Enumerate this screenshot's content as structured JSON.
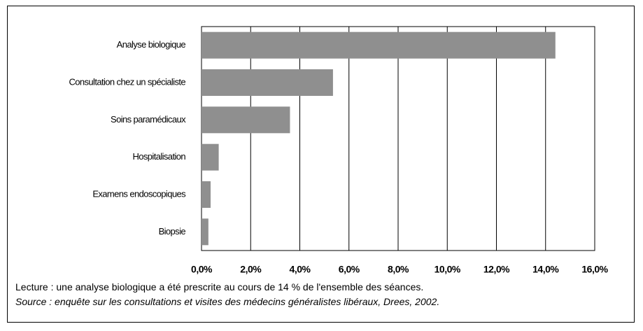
{
  "chart_data": {
    "type": "barh",
    "categories": [
      "Analyse biologique",
      "Consultation chez un spécialiste",
      "Soins paramédicaux",
      "Hospitalisation",
      "Examens endoscopiques",
      "Biopsie"
    ],
    "values": [
      14.4,
      5.35,
      3.6,
      0.7,
      0.37,
      0.28
    ],
    "color": "#8f8f8f",
    "xlim": [
      0,
      16
    ],
    "xticks": [
      {
        "value": 0,
        "label": "0,0%"
      },
      {
        "value": 2,
        "label": "2,0%"
      },
      {
        "value": 4,
        "label": "4,0%"
      },
      {
        "value": 6,
        "label": "6,0%"
      },
      {
        "value": 8,
        "label": "8,0%"
      },
      {
        "value": 10,
        "label": "10,0%"
      },
      {
        "value": 12,
        "label": "12,0%"
      },
      {
        "value": 14,
        "label": "14,0%"
      },
      {
        "value": 16,
        "label": "16,0%"
      }
    ],
    "grid": true,
    "notes": [
      "Lecture : une analyse biologique a été prescrite au cours de 14 % de l'ensemble des séances.",
      "Source : enquête sur les consultations et visites des médecins généralistes libéraux, Drees, 2002."
    ]
  }
}
